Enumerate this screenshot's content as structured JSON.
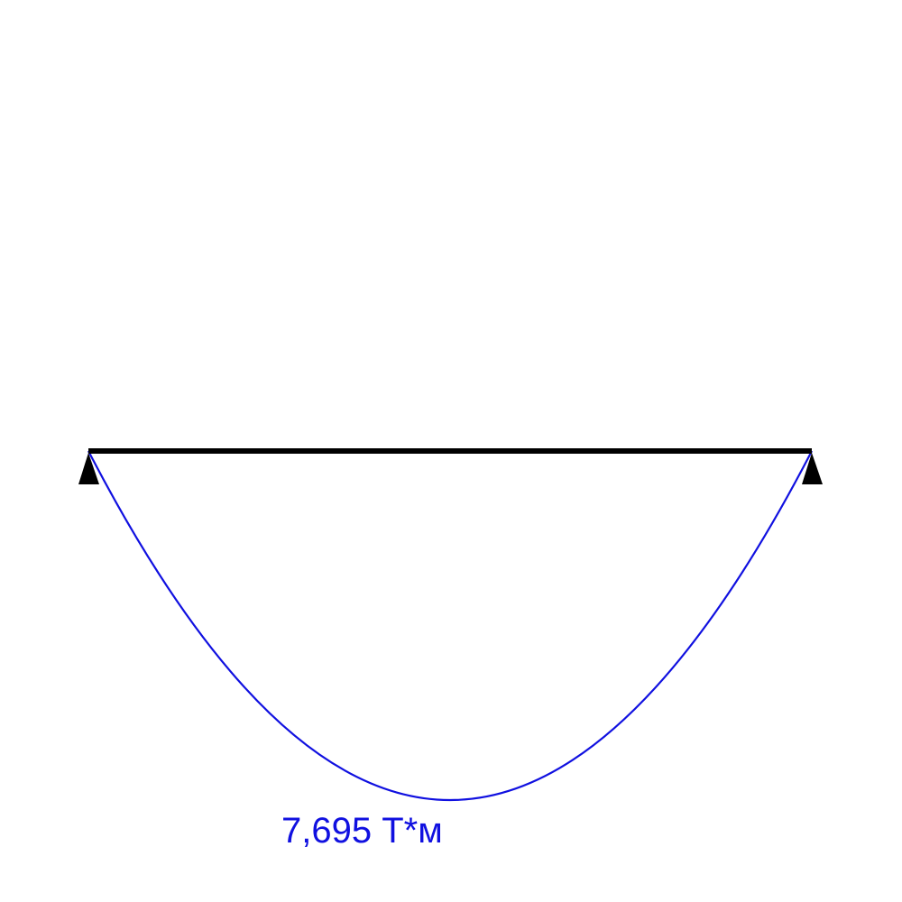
{
  "diagram": {
    "moment_label": "7,695 Т*м"
  }
}
